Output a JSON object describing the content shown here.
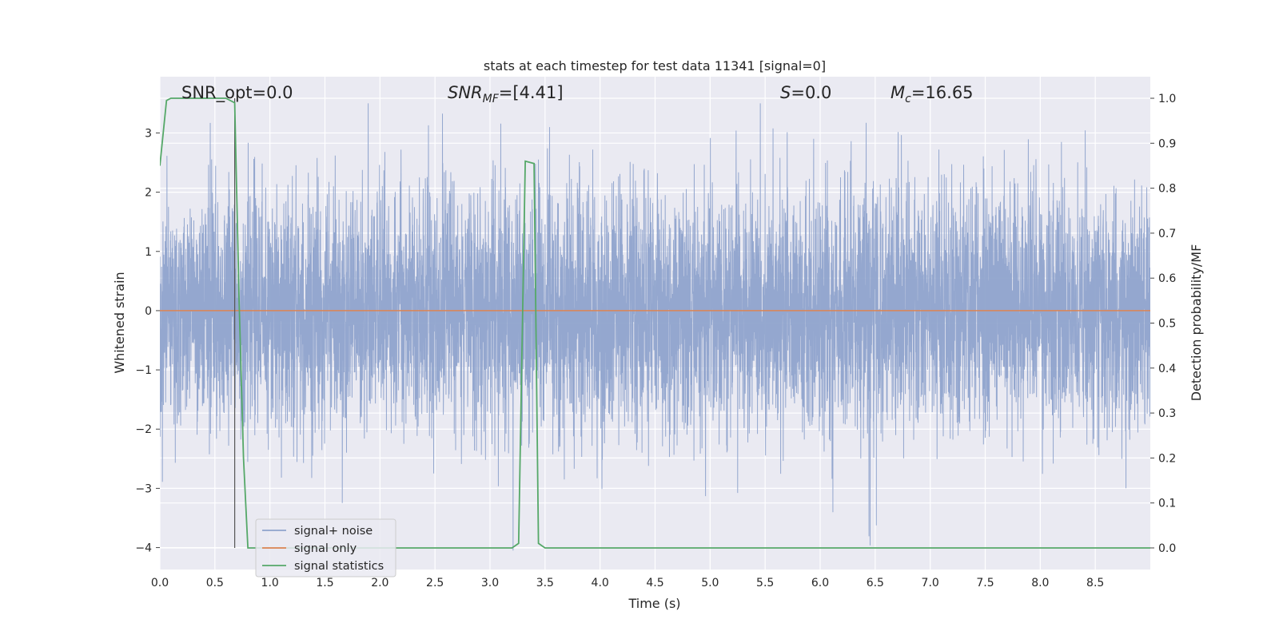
{
  "chart_data": {
    "type": "line",
    "title": "stats at each timestep for test data 11341 [signal=0]",
    "xlabel": "Time (s)",
    "ylabel": "Whitened strain",
    "y2label": "Detection probability/MF",
    "xlim": [
      0.0,
      9.0
    ],
    "ylim": [
      -4.37,
      3.95
    ],
    "y2lim": [
      -0.048,
      1.048
    ],
    "xticks": [
      "0.0",
      "0.5",
      "1.0",
      "1.5",
      "2.0",
      "2.5",
      "3.0",
      "3.5",
      "4.0",
      "4.5",
      "5.0",
      "5.5",
      "6.0",
      "6.5",
      "7.0",
      "7.5",
      "8.0",
      "8.5"
    ],
    "yticks": [
      "3",
      "2",
      "1",
      "0",
      "−1",
      "−2",
      "−3",
      "−4"
    ],
    "y2ticks": [
      "1.0",
      "0.9",
      "0.8",
      "0.7",
      "0.6",
      "0.5",
      "0.4",
      "0.3",
      "0.2",
      "0.1",
      "0.0"
    ],
    "grid": true,
    "legend_placement": "lower-left",
    "annotations": {
      "snr_opt": "SNR_opt=0.0",
      "snr_mf_main": "SNR",
      "snr_mf_sub": "MF",
      "snr_mf_value": "=[4.41]",
      "s_main": "S",
      "s_value": "=0.0",
      "mc_main": "M",
      "mc_sub": "c",
      "mc_value": "=16.65"
    },
    "vertical_marker_x": 0.68,
    "series": [
      {
        "name": "signal+ noise",
        "color": "#8fa3cc",
        "summary": "dense whitened noise, mostly within [-1.5, 1.5], occasional spikes up to about 3.5 and down to -4.0"
      },
      {
        "name": "signal only",
        "color": "#dd8452",
        "x": [
          0.0,
          9.0
        ],
        "y": [
          0.0,
          0.0
        ]
      },
      {
        "name": "signal statistics",
        "color": "#55a868",
        "axis": "right",
        "x": [
          0.0,
          0.06,
          0.1,
          0.5,
          0.6,
          0.68,
          0.72,
          0.76,
          0.8,
          1.0,
          2.0,
          3.0,
          3.2,
          3.26,
          3.32,
          3.4,
          3.44,
          3.5,
          4.0,
          5.0,
          6.0,
          7.0,
          8.0,
          9.0
        ],
        "y": [
          0.85,
          0.995,
          1.0,
          1.0,
          1.0,
          0.99,
          0.55,
          0.2,
          0.0,
          0.0,
          0.0,
          0.0,
          0.0,
          0.01,
          0.86,
          0.855,
          0.01,
          0.0,
          0.0,
          0.0,
          0.0,
          0.0,
          0.0,
          0.0
        ]
      }
    ],
    "colors": {
      "plot_background": "#eaeaf2",
      "grid": "#ffffff",
      "vertical_marker": "#555555"
    }
  }
}
